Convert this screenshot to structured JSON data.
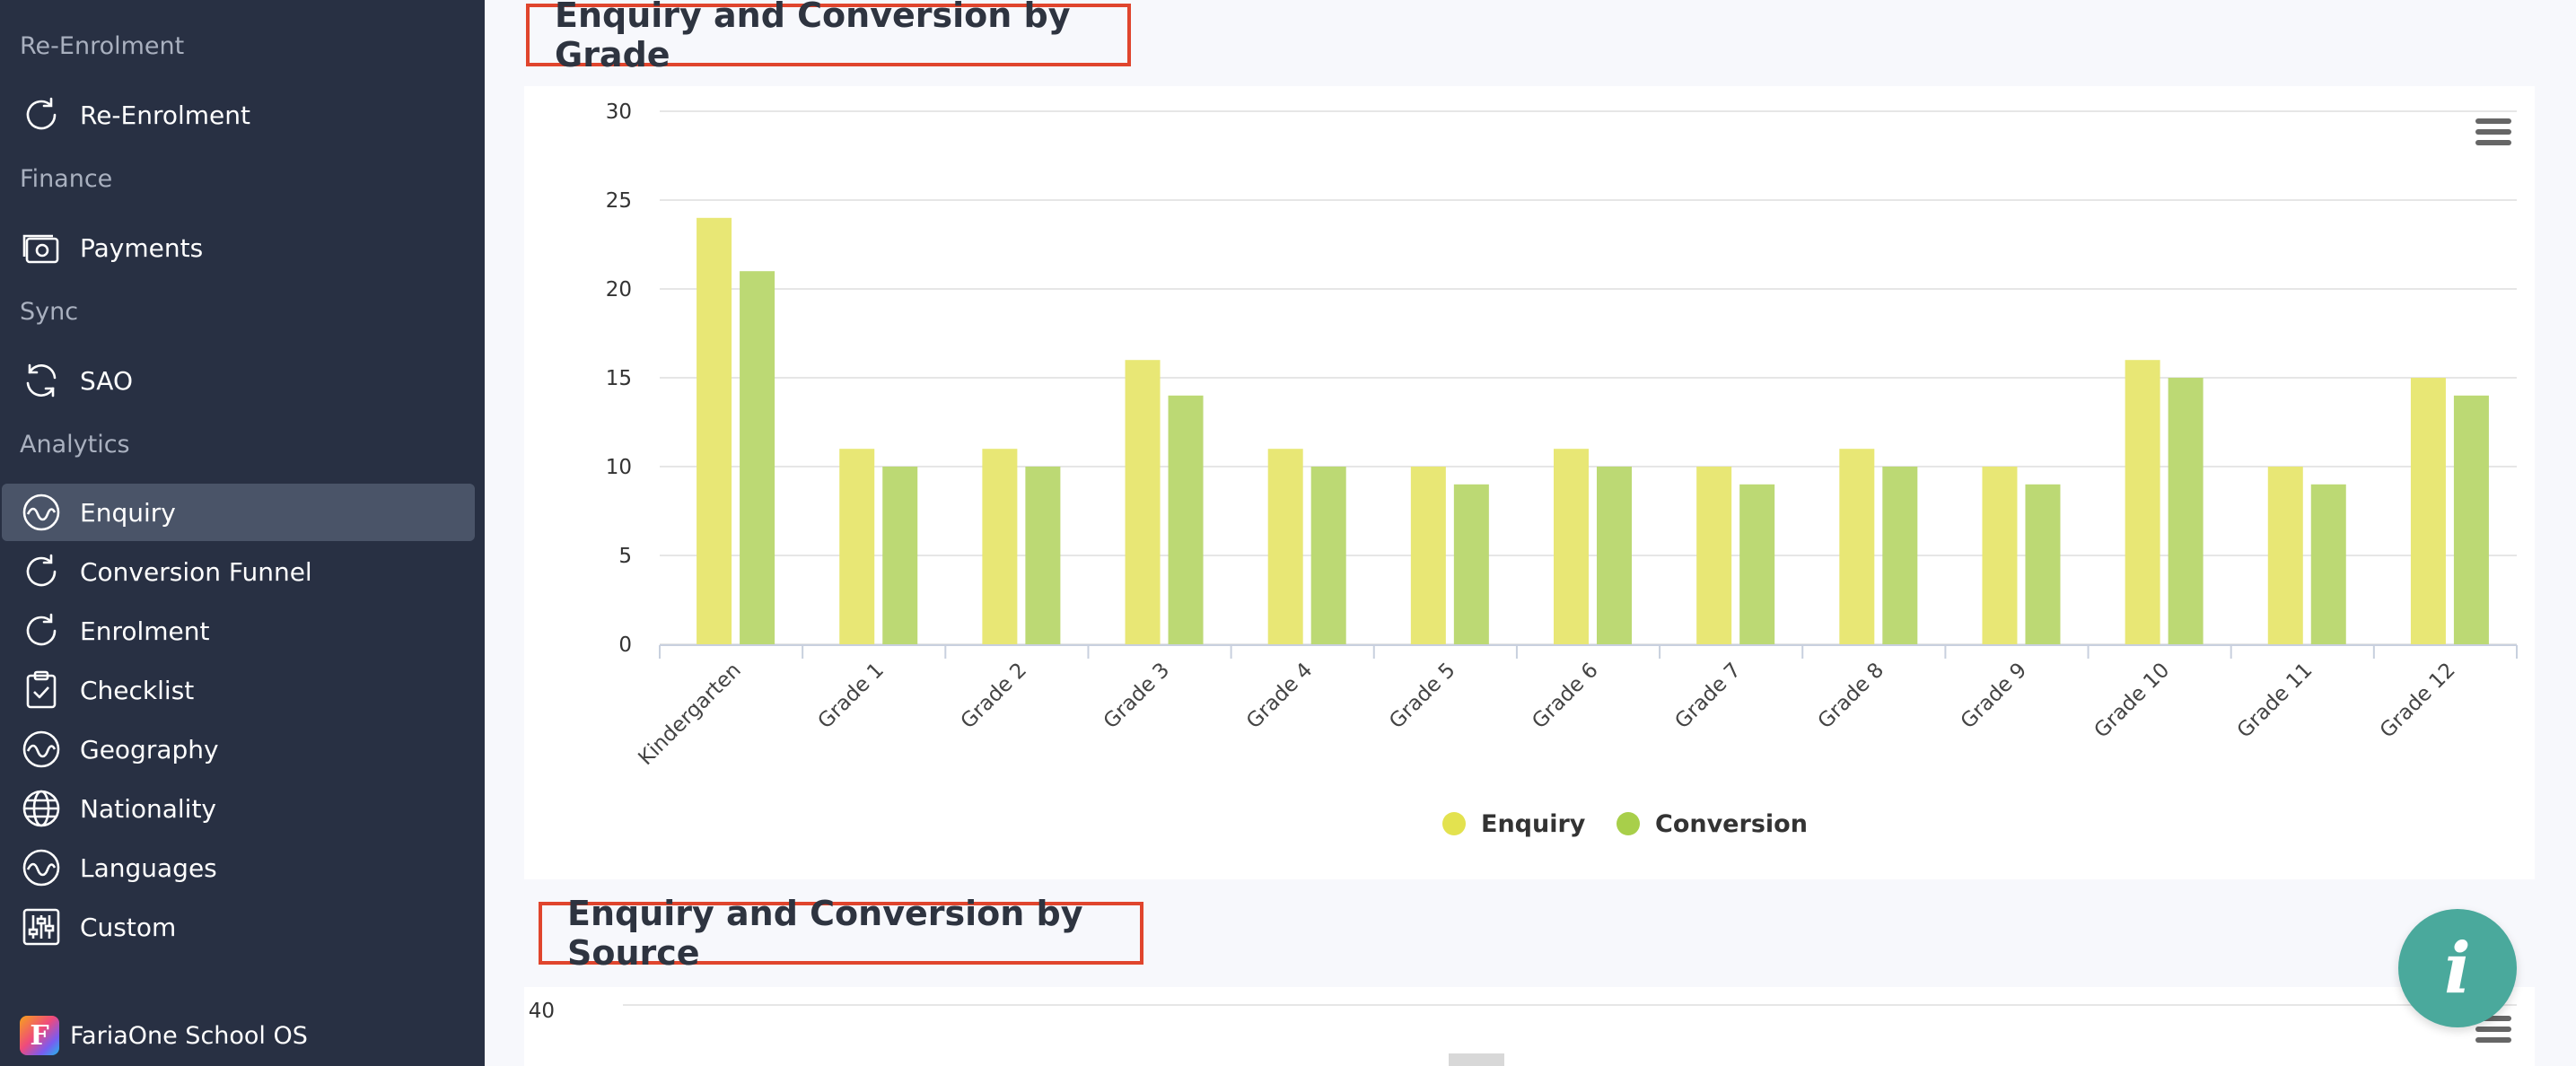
{
  "sidebar": {
    "sections": [
      {
        "label": "Re-Enrolment"
      },
      {
        "label": "Finance"
      },
      {
        "label": "Sync"
      },
      {
        "label": "Analytics"
      }
    ],
    "items": [
      {
        "label": "Re-Enrolment",
        "icon": "refresh-icon"
      },
      {
        "label": "Payments",
        "icon": "payments-icon"
      },
      {
        "label": "SAO",
        "icon": "refresh-icon"
      },
      {
        "label": "Enquiry",
        "icon": "wave-icon",
        "active": true
      },
      {
        "label": "Conversion Funnel",
        "icon": "refresh-icon"
      },
      {
        "label": "Enrolment",
        "icon": "refresh-icon"
      },
      {
        "label": "Checklist",
        "icon": "checklist-icon"
      },
      {
        "label": "Geography",
        "icon": "wave-icon"
      },
      {
        "label": "Nationality",
        "icon": "globe-icon"
      },
      {
        "label": "Languages",
        "icon": "wave-icon"
      },
      {
        "label": "Custom",
        "icon": "sliders-icon"
      }
    ],
    "brand": "FariaOne School OS"
  },
  "charts": {
    "grade_title": "Enquiry and Conversion by Grade",
    "source_title": "Enquiry and Conversion by Source",
    "source_y_top_tick": "40",
    "info_button": "i"
  },
  "colors": {
    "enquiry": "#e8e775",
    "conversion": "#bcd974",
    "enquiry_legend": "#e3e24f",
    "conversion_legend": "#a8cf4a",
    "accent_box": "#e0452d"
  },
  "chart_data": {
    "type": "bar",
    "title": "Enquiry and Conversion by Grade",
    "categories": [
      "Kindergarten",
      "Grade 1",
      "Grade 2",
      "Grade 3",
      "Grade 4",
      "Grade 5",
      "Grade 6",
      "Grade 7",
      "Grade 8",
      "Grade 9",
      "Grade 10",
      "Grade 11",
      "Grade 12"
    ],
    "series": [
      {
        "name": "Enquiry",
        "values": [
          24,
          11,
          11,
          16,
          11,
          10,
          11,
          10,
          11,
          10,
          16,
          10,
          15
        ]
      },
      {
        "name": "Conversion",
        "values": [
          21,
          10,
          10,
          14,
          10,
          9,
          10,
          9,
          10,
          9,
          15,
          9,
          14
        ]
      }
    ],
    "ylim": [
      0,
      30
    ],
    "yticks": [
      "0",
      "5",
      "10",
      "15",
      "20",
      "25",
      "30"
    ],
    "grid": true,
    "legend": "bottom-center"
  }
}
